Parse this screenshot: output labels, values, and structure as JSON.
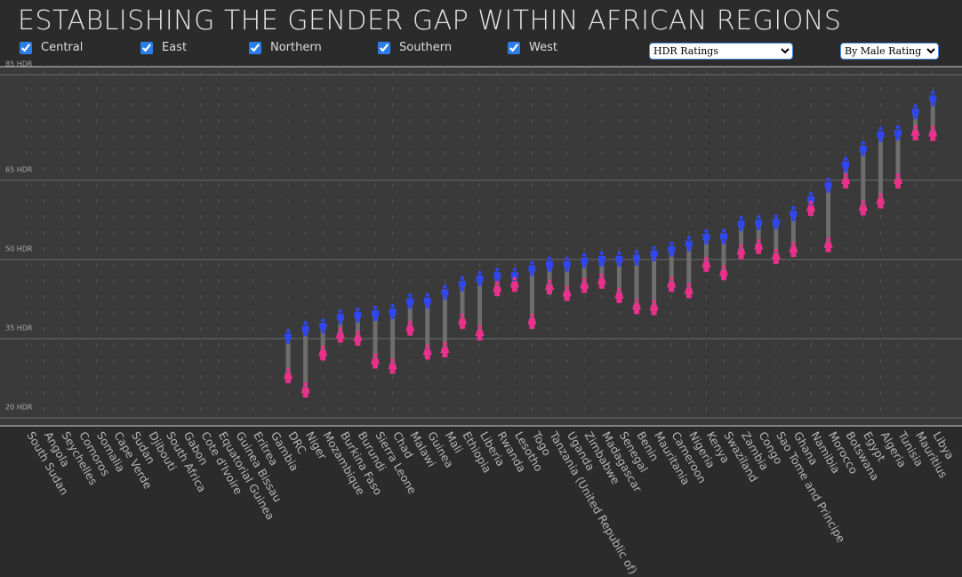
{
  "header": {
    "title": "ESTABLISHING THE GENDER GAP WITHIN AFRICAN REGIONS",
    "filters": [
      "Central",
      "East",
      "Northern",
      "Southern",
      "West"
    ],
    "measure": "HDR Ratings",
    "sort": "By Male Rating"
  },
  "chart_data": {
    "type": "dumbbell",
    "categories": [
      "South Sudan",
      "Angola",
      "Seychelles",
      "Comoros",
      "Somalia",
      "Cape Verde",
      "Sudan",
      "Djibouti",
      "South Africa",
      "Gabon",
      "Cote d'Ivoire",
      "Equatorial Guinea",
      "Guinea Bissau",
      "Eritrea",
      "Gambia",
      "DRC",
      "Niger",
      "Mozambique",
      "Burkina Faso",
      "Burundi",
      "Sierra Leone",
      "Chad",
      "Malawi",
      "Guinea",
      "Mali",
      "Ethiopia",
      "Liberia",
      "Rwanda",
      "Lesotho",
      "Togo",
      "Tanzania (United Republic of)",
      "Uganda",
      "Zimbabwe",
      "Madagascar",
      "Senegal",
      "Benin",
      "Mauritania",
      "Cameroon",
      "Nigeria",
      "Kenya",
      "Swaziland",
      "Zambia",
      "Congo",
      "Sao Tome and Principe",
      "Ghana",
      "Namibia",
      "Morocco",
      "Botswana",
      "Egypt",
      "Algeria",
      "Tunisia",
      "Mauritius",
      "Libya"
    ],
    "series": [
      {
        "color": "#2f46f0",
        "values": [
          null,
          null,
          null,
          null,
          null,
          null,
          null,
          null,
          null,
          null,
          null,
          null,
          null,
          null,
          null,
          35.3,
          36.8,
          37.3,
          39.0,
          39.4,
          39.7,
          40.0,
          42.0,
          42.1,
          43.7,
          45.3,
          46.3,
          46.9,
          46.9,
          48.2,
          49.0,
          49.0,
          49.7,
          50.0,
          50.0,
          50.2,
          51.0,
          51.9,
          52.9,
          54.2,
          54.3,
          56.7,
          56.9,
          57.0,
          58.6,
          61.3,
          64.0,
          67.9,
          70.9,
          73.6,
          73.9,
          77.9,
          80.4
        ]
      },
      {
        "color": "#e8318a",
        "values": [
          null,
          null,
          null,
          null,
          null,
          null,
          null,
          null,
          null,
          null,
          null,
          null,
          null,
          null,
          null,
          27.9,
          25.2,
          32.2,
          35.6,
          35.0,
          30.7,
          29.7,
          36.9,
          32.4,
          32.8,
          38.2,
          36.0,
          44.4,
          45.2,
          38.2,
          44.7,
          43.5,
          45.0,
          45.8,
          43.1,
          41.0,
          40.8,
          45.2,
          44.0,
          49.0,
          47.4,
          51.4,
          52.4,
          50.5,
          51.8,
          59.6,
          52.7,
          64.8,
          59.7,
          61.0,
          64.8,
          73.9,
          73.8
        ]
      }
    ],
    "ylim": [
      20,
      85
    ],
    "yticks": [
      {
        "value": 20,
        "label": "20 HDR"
      },
      {
        "value": 35,
        "label": "35 HDR"
      },
      {
        "value": 50,
        "label": "50 HDR"
      },
      {
        "value": 65,
        "label": "65 HDR"
      },
      {
        "value": 85,
        "label": "85 HDR"
      }
    ],
    "grid": true
  }
}
